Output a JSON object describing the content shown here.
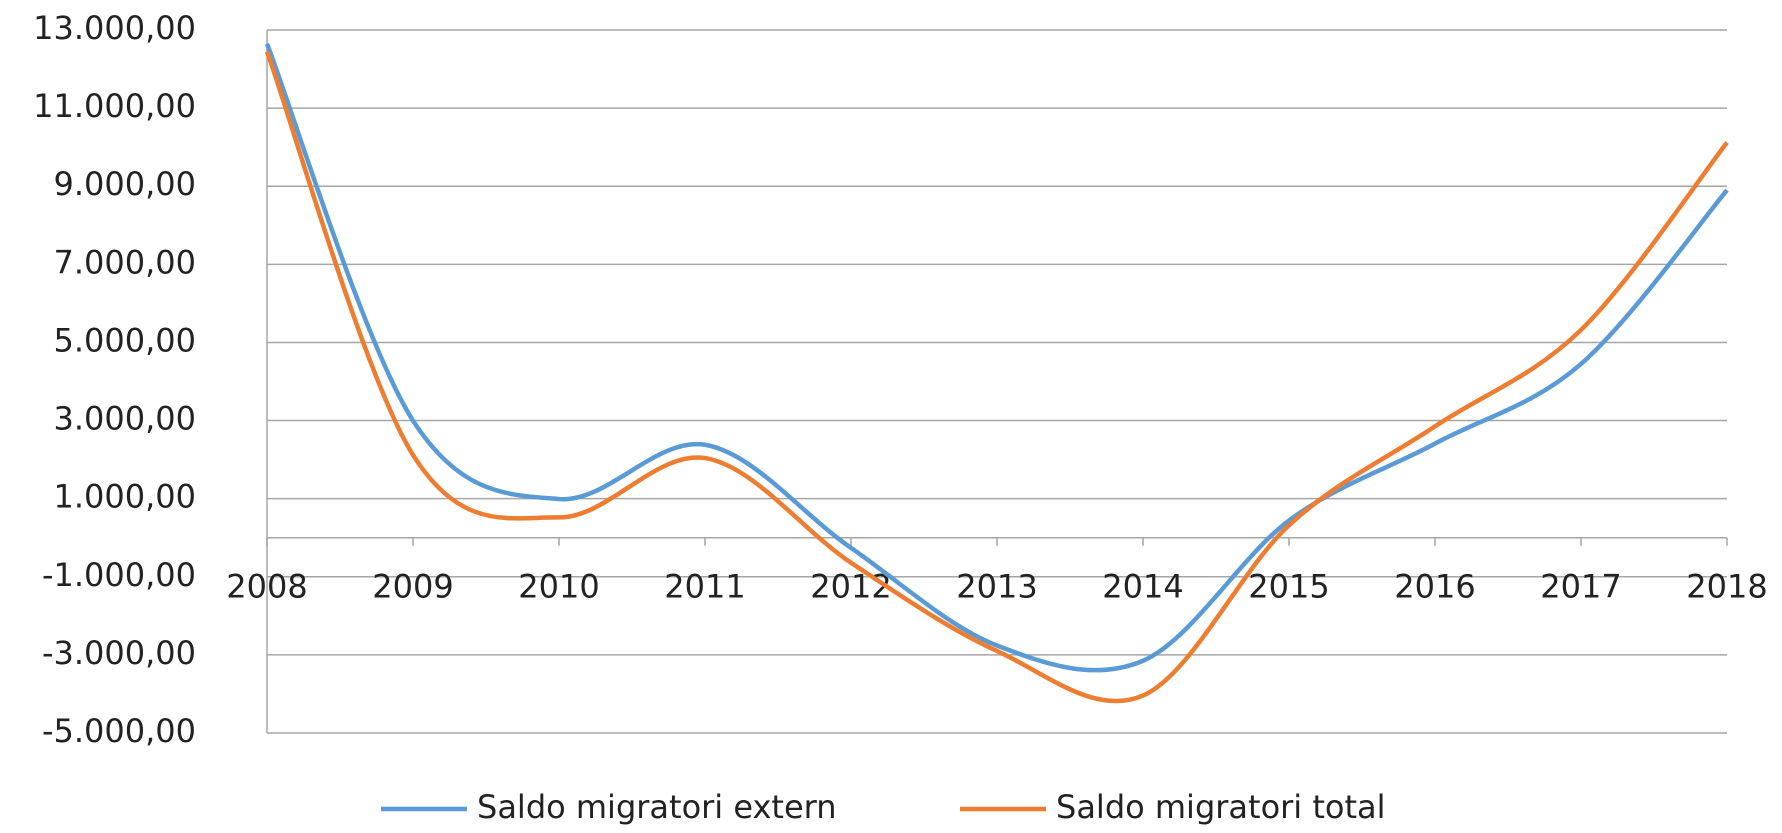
{
  "chart_data": {
    "type": "line",
    "categories": [
      "2008",
      "2009",
      "2010",
      "2011",
      "2012",
      "2013",
      "2014",
      "2015",
      "2016",
      "2017",
      "2018"
    ],
    "series": [
      {
        "name": "Saldo migratori extern",
        "color": "#5b9bd5",
        "values": [
          12650,
          3000,
          990,
          2380,
          -260,
          -2760,
          -3150,
          440,
          2410,
          4450,
          8900
        ]
      },
      {
        "name": "Saldo migratori total",
        "color": "#ed7d31",
        "values": [
          12450,
          2120,
          520,
          2040,
          -640,
          -2900,
          -4040,
          320,
          2850,
          5320,
          10120
        ]
      }
    ],
    "ylim": [
      -5000,
      13000
    ],
    "yticks": [
      {
        "value": -5000,
        "label": "-5.000,00"
      },
      {
        "value": -3000,
        "label": "-3.000,00"
      },
      {
        "value": -1000,
        "label": "-1.000,00"
      },
      {
        "value": 1000,
        "label": "1.000,00"
      },
      {
        "value": 3000,
        "label": "3.000,00"
      },
      {
        "value": 5000,
        "label": "5.000,00"
      },
      {
        "value": 7000,
        "label": "7.000,00"
      },
      {
        "value": 9000,
        "label": "9.000,00"
      },
      {
        "value": 11000,
        "label": "11.000,00"
      },
      {
        "value": 13000,
        "label": "13.000,00"
      }
    ],
    "grid": true,
    "smooth": true,
    "legend": "bottom"
  }
}
